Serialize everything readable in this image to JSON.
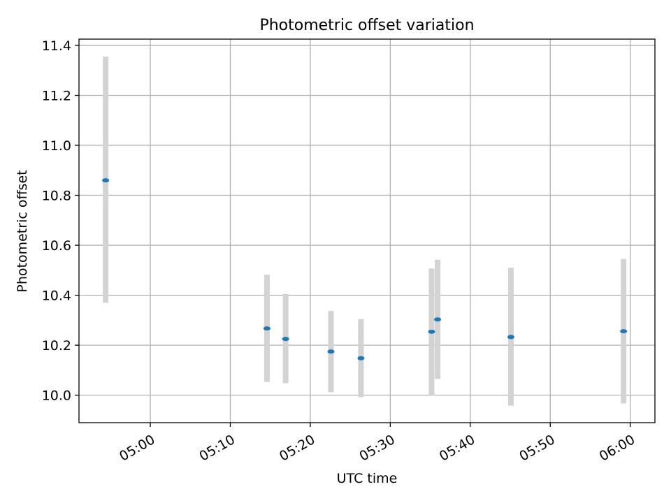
{
  "chart_data": {
    "type": "scatter",
    "title": "Photometric offset variation",
    "xlabel": "UTC time",
    "ylabel": "Photometric offset",
    "grid": true,
    "xlim": [
      "04:51:05",
      "06:03:05"
    ],
    "ylim": [
      9.89,
      11.425
    ],
    "xticks": [
      "05:00",
      "05:10",
      "05:20",
      "05:30",
      "05:40",
      "05:50",
      "06:00"
    ],
    "yticks": [
      "10.0",
      "10.2",
      "10.4",
      "10.6",
      "10.8",
      "11.0",
      "11.2",
      "11.4"
    ],
    "colors": {
      "points": "#1f77b4",
      "errorbars": "#d3d3d3",
      "grid": "#b0b0b0"
    },
    "points": [
      {
        "x": "04:54:25",
        "y": 10.86,
        "low": 10.37,
        "high": 11.355
      },
      {
        "x": "05:14:35",
        "y": 10.267,
        "low": 10.053,
        "high": 10.482
      },
      {
        "x": "05:16:55",
        "y": 10.225,
        "low": 10.048,
        "high": 10.405
      },
      {
        "x": "05:22:35",
        "y": 10.175,
        "low": 10.012,
        "high": 10.337
      },
      {
        "x": "05:26:20",
        "y": 10.148,
        "low": 9.992,
        "high": 10.305
      },
      {
        "x": "05:35:10",
        "y": 10.254,
        "low": 10.0,
        "high": 10.507
      },
      {
        "x": "05:35:55",
        "y": 10.303,
        "low": 10.065,
        "high": 10.542
      },
      {
        "x": "05:45:05",
        "y": 10.233,
        "low": 9.958,
        "high": 10.51
      },
      {
        "x": "05:59:10",
        "y": 10.256,
        "low": 9.967,
        "high": 10.545
      }
    ]
  }
}
